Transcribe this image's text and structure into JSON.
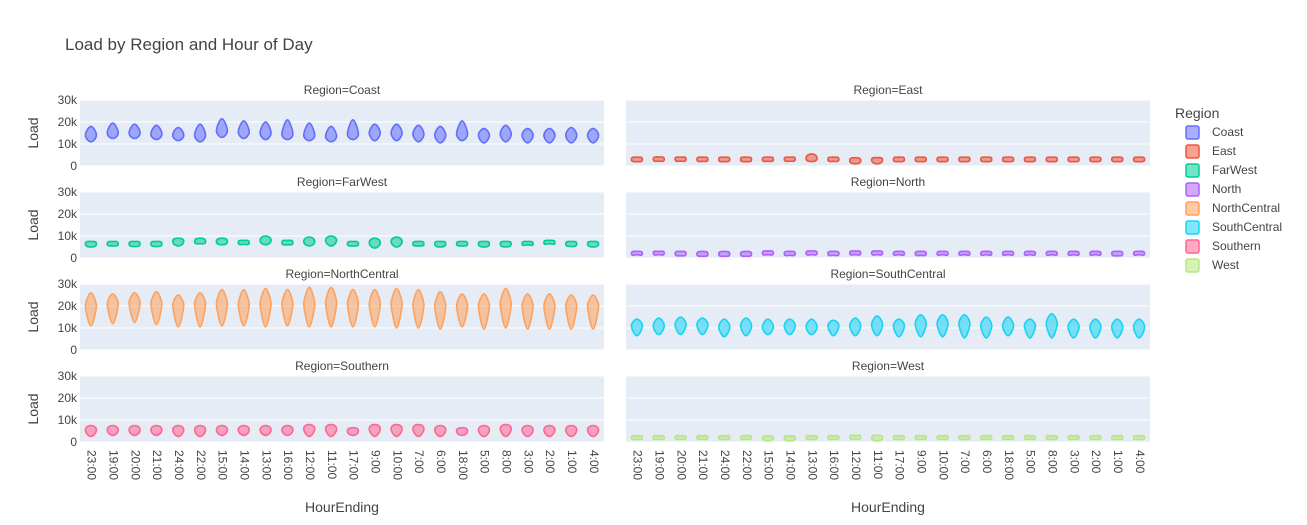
{
  "chart_data": {
    "type": "violin",
    "title": "Load by Region and Hour of Day",
    "xlabel": "HourEnding",
    "ylabel": "Load",
    "ylim": [
      0,
      30000
    ],
    "yticks": [
      {
        "value": 0,
        "label": "0"
      },
      {
        "value": 10000,
        "label": "10k"
      },
      {
        "value": 20000,
        "label": "20k"
      },
      {
        "value": 30000,
        "label": "30k"
      }
    ],
    "legend_title": "Region",
    "legend_position": "right",
    "categories": [
      "23:00",
      "19:00",
      "20:00",
      "21:00",
      "24:00",
      "22:00",
      "15:00",
      "14:00",
      "13:00",
      "16:00",
      "12:00",
      "11:00",
      "17:00",
      "9:00",
      "10:00",
      "7:00",
      "6:00",
      "18:00",
      "5:00",
      "8:00",
      "3:00",
      "2:00",
      "1:00",
      "4:00"
    ],
    "series": [
      {
        "name": "Coast",
        "facet_title": "Region=Coast",
        "color": "#636efa",
        "lo": [
          11000,
          12500,
          12500,
          12000,
          11500,
          11000,
          13000,
          12500,
          12000,
          12000,
          11500,
          11000,
          12000,
          11500,
          11500,
          11000,
          10500,
          11500,
          10500,
          11000,
          10500,
          10500,
          10500,
          10500
        ],
        "mid": [
          14000,
          15000,
          15000,
          14500,
          14000,
          14000,
          16000,
          15500,
          15000,
          14500,
          14000,
          13500,
          14500,
          15000,
          15000,
          14500,
          14000,
          14500,
          14000,
          14500,
          14000,
          14000,
          14000,
          14000
        ],
        "hi": [
          18000,
          19500,
          19000,
          18500,
          17500,
          19000,
          21500,
          20500,
          20000,
          21000,
          19500,
          18000,
          21000,
          19000,
          19000,
          18500,
          18000,
          20500,
          17000,
          18500,
          17000,
          17000,
          17500,
          17000
        ]
      },
      {
        "name": "East",
        "facet_title": "Region=East",
        "color": "#ef553b",
        "lo": [
          2000,
          2200,
          2200,
          2100,
          2000,
          2000,
          2200,
          2200,
          2000,
          2100,
          1000,
          1000,
          2000,
          2000,
          2000,
          2000,
          2000,
          2000,
          2000,
          2000,
          2000,
          2000,
          2000,
          2000
        ],
        "mid": [
          3000,
          3100,
          3100,
          3000,
          3000,
          3000,
          3000,
          3100,
          3500,
          3000,
          2500,
          2800,
          3000,
          3000,
          3000,
          3000,
          3000,
          3000,
          3000,
          3000,
          3000,
          3000,
          3000,
          3000
        ],
        "hi": [
          4000,
          4100,
          4000,
          4000,
          4000,
          4000,
          4000,
          4000,
          5500,
          4000,
          3800,
          3800,
          4000,
          4000,
          4000,
          4000,
          4000,
          4000,
          4000,
          4000,
          4000,
          4000,
          4000,
          4000
        ]
      },
      {
        "name": "FarWest",
        "facet_title": "Region=FarWest",
        "color": "#00cc96",
        "lo": [
          5000,
          5500,
          5200,
          5200,
          5500,
          6500,
          6000,
          6200,
          6000,
          6000,
          5500,
          5500,
          5500,
          4500,
          5000,
          5500,
          5000,
          5500,
          5000,
          5000,
          6000,
          6500,
          5200,
          5000
        ],
        "mid": [
          6500,
          6500,
          6500,
          6500,
          7500,
          7500,
          7500,
          7000,
          8000,
          7000,
          7500,
          8000,
          6500,
          7000,
          7500,
          6500,
          6500,
          6500,
          6500,
          6500,
          6500,
          7000,
          6500,
          6500
        ],
        "hi": [
          7500,
          7500,
          7500,
          7500,
          9000,
          9000,
          9000,
          8000,
          10000,
          8000,
          9500,
          10000,
          7500,
          9000,
          9500,
          7500,
          7500,
          7500,
          7500,
          7500,
          7500,
          8000,
          7500,
          7500
        ]
      },
      {
        "name": "North",
        "facet_title": "Region=North",
        "color": "#ab63fa",
        "lo": [
          1500,
          1500,
          1000,
          800,
          800,
          800,
          1500,
          1200,
          1500,
          1200,
          1500,
          1500,
          1500,
          1200,
          1500,
          1500,
          1500,
          1500,
          1500,
          1500,
          1500,
          1500,
          1000,
          1500
        ],
        "mid": [
          2000,
          2200,
          2000,
          1800,
          1800,
          1800,
          2200,
          2000,
          2200,
          2000,
          2200,
          2200,
          2000,
          2000,
          2000,
          2000,
          2000,
          2000,
          2000,
          2000,
          2000,
          2000,
          2000,
          2000
        ],
        "hi": [
          3000,
          3000,
          3000,
          3000,
          3000,
          3000,
          3200,
          3000,
          3200,
          3000,
          3200,
          3200,
          3000,
          3000,
          3000,
          3000,
          3000,
          3000,
          3000,
          3000,
          3000,
          3000,
          3000,
          3000
        ]
      },
      {
        "name": "NorthCentral",
        "facet_title": "Region=NorthCentral",
        "color": "#ffa15a",
        "lo": [
          11000,
          12000,
          12500,
          11500,
          10500,
          10500,
          11000,
          11000,
          10500,
          11000,
          10500,
          10500,
          10500,
          10500,
          10000,
          10000,
          9500,
          10500,
          9500,
          10000,
          9500,
          9500,
          9500,
          9500
        ],
        "mid": [
          20000,
          21000,
          21500,
          21000,
          20500,
          21000,
          21000,
          20500,
          21000,
          21000,
          21000,
          21500,
          21000,
          21000,
          21000,
          20500,
          20000,
          20000,
          20000,
          21000,
          20000,
          20000,
          20000,
          20000
        ],
        "hi": [
          26000,
          25500,
          26000,
          26500,
          25000,
          26000,
          27500,
          27500,
          28000,
          27500,
          28500,
          28500,
          27500,
          27500,
          28000,
          27500,
          26500,
          25500,
          25500,
          28000,
          25500,
          25500,
          25000,
          25000
        ]
      },
      {
        "name": "SouthCentral",
        "facet_title": "Region=SouthCentral",
        "color": "#19d3f3",
        "lo": [
          6500,
          7000,
          7000,
          7000,
          6000,
          6500,
          7000,
          7000,
          7000,
          6500,
          6500,
          6500,
          6000,
          6000,
          6000,
          5500,
          5500,
          6500,
          5500,
          5500,
          5500,
          5500,
          5500,
          5500
        ],
        "mid": [
          11000,
          11000,
          11500,
          11500,
          10500,
          11000,
          10500,
          11000,
          10500,
          11000,
          11000,
          11500,
          11000,
          12000,
          12000,
          12000,
          11000,
          11000,
          11000,
          12000,
          10500,
          10500,
          10500,
          10500
        ],
        "hi": [
          14000,
          14500,
          15000,
          14500,
          14000,
          14500,
          14000,
          14000,
          14000,
          13500,
          14500,
          15500,
          14000,
          16000,
          16000,
          16000,
          15000,
          15000,
          14000,
          16500,
          14000,
          14000,
          14000,
          14000
        ]
      },
      {
        "name": "Southern",
        "facet_title": "Region=Southern",
        "color": "#ff6692",
        "lo": [
          2500,
          3000,
          3000,
          3000,
          2500,
          2500,
          3000,
          3000,
          3000,
          3000,
          2500,
          2500,
          3000,
          2500,
          2500,
          2500,
          2500,
          3000,
          2500,
          2500,
          2500,
          2500,
          2500,
          2500
        ],
        "mid": [
          5500,
          5500,
          5500,
          5500,
          5500,
          5500,
          5500,
          5500,
          5500,
          5500,
          6000,
          6000,
          5000,
          6000,
          6000,
          6000,
          5500,
          5000,
          5500,
          6000,
          5500,
          5500,
          5500,
          5500
        ],
        "hi": [
          7500,
          7500,
          7500,
          7500,
          7500,
          7500,
          7500,
          7500,
          7500,
          7500,
          8000,
          8000,
          6500,
          8000,
          8000,
          8000,
          7500,
          6500,
          7500,
          8000,
          7500,
          7500,
          7500,
          7500
        ]
      },
      {
        "name": "West",
        "facet_title": "Region=West",
        "color": "#b6e880",
        "lo": [
          1200,
          1200,
          1200,
          1200,
          1200,
          1200,
          500,
          500,
          1200,
          1200,
          1200,
          500,
          1200,
          1200,
          1200,
          1200,
          1200,
          1200,
          1200,
          1200,
          1200,
          1200,
          1200,
          1200
        ],
        "mid": [
          2000,
          2000,
          2000,
          2000,
          2000,
          2000,
          1800,
          1800,
          2000,
          2000,
          2200,
          2000,
          2000,
          2000,
          2000,
          2000,
          2000,
          2000,
          2000,
          2000,
          2000,
          2000,
          2000,
          2000
        ],
        "hi": [
          2800,
          2800,
          2800,
          2800,
          2800,
          2800,
          2800,
          2800,
          2800,
          2800,
          3000,
          3000,
          2800,
          2800,
          2800,
          2800,
          2800,
          2800,
          2800,
          2800,
          2800,
          2800,
          2800,
          2800
        ]
      }
    ]
  }
}
